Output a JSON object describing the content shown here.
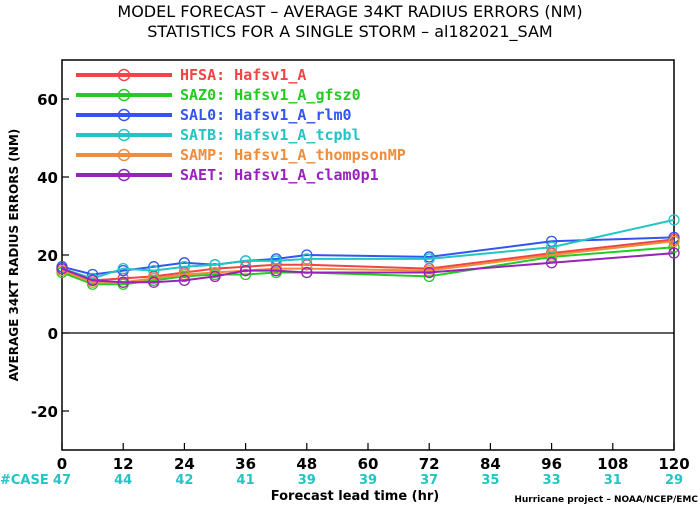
{
  "chart_data": {
    "type": "line",
    "title": "MODEL FORECAST – AVERAGE 34KT RADIUS ERRORS (NM)",
    "subtitle": "STATISTICS FOR A SINGLE STORM – al182021_SAM",
    "xlabel": "Forecast lead time (hr)",
    "ylabel": "AVERAGE 34KT RADIUS ERRORS (NM)",
    "xlim": [
      0,
      120
    ],
    "ylim": [
      -30,
      70
    ],
    "xticks": [
      0,
      12,
      24,
      36,
      48,
      60,
      72,
      84,
      96,
      108,
      120
    ],
    "yticks": [
      -20,
      0,
      20,
      40,
      60
    ],
    "case_label": "#CASE",
    "case_counts": [
      "47",
      "44",
      "42",
      "41",
      "39",
      "39",
      "37",
      "35",
      "33",
      "31",
      "29"
    ],
    "credit": "Hurricane project – NOAA/NCEP/EMC",
    "legend_position": "top-left",
    "grid": false,
    "zero_line": true,
    "series": [
      {
        "name": "HFSA: Hafsv1_A",
        "color": "#f04545",
        "x": [
          0,
          6,
          12,
          18,
          24,
          30,
          36,
          42,
          48,
          72,
          96,
          120
        ],
        "y": [
          16.5,
          13.5,
          14.0,
          14.5,
          15.5,
          16.5,
          17.0,
          17.5,
          17.5,
          16.5,
          20.5,
          24.0
        ]
      },
      {
        "name": "SAZ0: Hafsv1_A_gfsz0",
        "color": "#22cc22",
        "x": [
          0,
          6,
          12,
          18,
          24,
          30,
          36,
          42,
          48,
          72,
          96,
          120
        ],
        "y": [
          15.5,
          12.5,
          12.5,
          13.5,
          14.5,
          15.0,
          15.0,
          15.5,
          15.5,
          14.5,
          19.5,
          22.0
        ]
      },
      {
        "name": "SAL0: Hafsv1_A_rlm0",
        "color": "#3355ee",
        "x": [
          0,
          6,
          12,
          18,
          24,
          30,
          36,
          42,
          48,
          72,
          96,
          120
        ],
        "y": [
          17.0,
          15.0,
          16.0,
          17.0,
          18.0,
          17.5,
          18.5,
          19.0,
          20.0,
          19.5,
          23.5,
          24.5
        ]
      },
      {
        "name": "SATB: Hafsv1_A_tcpbl",
        "color": "#22c4c4",
        "x": [
          0,
          6,
          12,
          18,
          24,
          30,
          36,
          42,
          48,
          72,
          96,
          120
        ],
        "y": [
          16.5,
          14.0,
          16.5,
          16.0,
          17.0,
          17.5,
          18.5,
          18.5,
          19.0,
          19.0,
          22.0,
          29.0
        ]
      },
      {
        "name": "SAMP: Hafsv1_A_thompsonMP",
        "color": "#f08c3a",
        "x": [
          0,
          6,
          12,
          18,
          24,
          30,
          36,
          42,
          48,
          72,
          96,
          120
        ],
        "y": [
          16.0,
          13.0,
          13.0,
          14.0,
          15.0,
          15.5,
          16.0,
          16.5,
          16.5,
          16.0,
          20.0,
          23.5
        ]
      },
      {
        "name": "SAET: Hafsv1_A_clam0p1",
        "color": "#9922bb",
        "x": [
          0,
          6,
          12,
          18,
          24,
          30,
          36,
          42,
          48,
          72,
          96,
          120
        ],
        "y": [
          16.5,
          13.5,
          13.0,
          13.0,
          13.5,
          14.5,
          16.0,
          16.0,
          15.5,
          15.5,
          18.0,
          20.5
        ]
      }
    ]
  }
}
